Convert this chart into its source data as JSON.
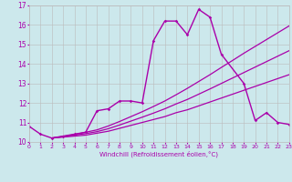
{
  "xlabel": "Windchill (Refroidissement éolien,°C)",
  "xlim": [
    0,
    23
  ],
  "ylim": [
    10,
    17
  ],
  "yticks": [
    10,
    11,
    12,
    13,
    14,
    15,
    16,
    17
  ],
  "xticks": [
    0,
    1,
    2,
    3,
    4,
    5,
    6,
    7,
    8,
    9,
    10,
    11,
    12,
    13,
    14,
    15,
    16,
    17,
    18,
    19,
    20,
    21,
    22,
    23
  ],
  "bg_color": "#cce8ec",
  "line_color": "#aa00aa",
  "grid_color": "#bbbbbb",
  "lines": [
    {
      "x": [
        0,
        1,
        2,
        3,
        4,
        5,
        6,
        7,
        8,
        9,
        10,
        11,
        12,
        13,
        14,
        15,
        16,
        17,
        19,
        20,
        21,
        22,
        23
      ],
      "y": [
        10.8,
        10.4,
        10.2,
        10.3,
        10.4,
        10.5,
        11.6,
        11.7,
        12.1,
        12.1,
        12.0,
        15.2,
        16.2,
        16.2,
        15.5,
        16.8,
        16.4,
        14.5,
        13.0,
        11.1,
        11.5,
        11.0,
        10.9
      ],
      "marker": true,
      "linewidth": 1.0
    },
    {
      "x": [
        2,
        3,
        4,
        5,
        6,
        7,
        8,
        9,
        10,
        11,
        12,
        13,
        14,
        15,
        16,
        17,
        18,
        19,
        20,
        21,
        22,
        23
      ],
      "y": [
        10.2,
        10.25,
        10.3,
        10.35,
        10.45,
        10.55,
        10.7,
        10.85,
        11.0,
        11.15,
        11.3,
        11.5,
        11.65,
        11.85,
        12.05,
        12.25,
        12.45,
        12.65,
        12.85,
        13.05,
        13.25,
        13.45
      ],
      "marker": false,
      "linewidth": 0.9
    },
    {
      "x": [
        2,
        3,
        4,
        5,
        6,
        7,
        8,
        9,
        10,
        11,
        12,
        13,
        14,
        15,
        16,
        17,
        18,
        19,
        20,
        21,
        22,
        23
      ],
      "y": [
        10.2,
        10.28,
        10.38,
        10.5,
        10.62,
        10.82,
        11.05,
        11.3,
        11.55,
        11.82,
        12.1,
        12.42,
        12.75,
        13.1,
        13.45,
        13.82,
        14.18,
        14.55,
        14.9,
        15.25,
        15.6,
        15.95
      ],
      "marker": false,
      "linewidth": 0.9
    },
    {
      "x": [
        2,
        3,
        4,
        5,
        6,
        7,
        8,
        9,
        10,
        11,
        12,
        13,
        14,
        15,
        16,
        17,
        18,
        19,
        20,
        21,
        22,
        23
      ],
      "y": [
        10.2,
        10.27,
        10.35,
        10.43,
        10.53,
        10.68,
        10.87,
        11.07,
        11.27,
        11.48,
        11.7,
        11.95,
        12.18,
        12.45,
        12.72,
        13.0,
        13.28,
        13.56,
        13.84,
        14.12,
        14.4,
        14.68
      ],
      "marker": false,
      "linewidth": 0.9
    }
  ]
}
